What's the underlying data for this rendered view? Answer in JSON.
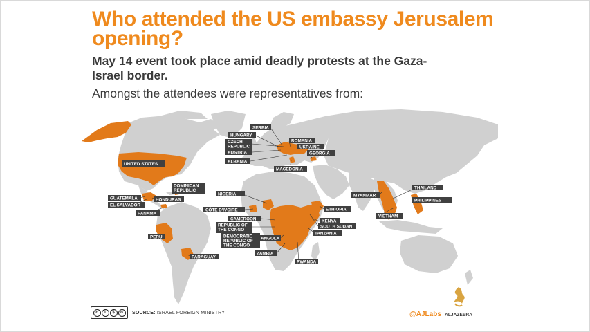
{
  "title": "Who attended the US embassy Jerusalem opening?",
  "subtitle": "May 14 event took place amid deadly protests at the Gaza-Israel border.",
  "intro": "Amongst the attendees were representatives from:",
  "colors": {
    "accent": "#ef8a1e",
    "land": "#d0d0d0",
    "highlight": "#e27a1a",
    "label_bg": "#404040"
  },
  "countries": [
    "SERBIA",
    "HUNGARY",
    "ROMANIA",
    "CZECH REPUBLIC",
    "UKRAINE",
    "AUSTRIA",
    "GEORGIA",
    "ALBANIA",
    "MACEDONIA",
    "UNITED STATES",
    "DOMINICAN REPUBLIC",
    "NIGERIA",
    "GUATEMALA",
    "HONDURAS",
    "EL SALVADOR",
    "PANAMA",
    "CÔTE D'IVOIRE",
    "CAMEROON",
    "REPUBLIC OF THE CONGO",
    "DEMOCRATIC REPUBLIC OF THE CONGO",
    "ANGOLA",
    "ETHIOPIA",
    "KENYA",
    "SOUTH SUDAN",
    "TANZANIA",
    "ZAMBIA",
    "RWANDA",
    "PERU",
    "PARAGUAY",
    "MYANMAR",
    "THAILAND",
    "PHILIPPINES",
    "VIETNAM"
  ],
  "footer": {
    "source_label": "SOURCE:",
    "source_text": "ISRAEL FOREIGN MINISTRY",
    "license": "CC BY NC SA"
  },
  "brand": {
    "handle": "@AJLabs",
    "name": "ALJAZEERA"
  }
}
